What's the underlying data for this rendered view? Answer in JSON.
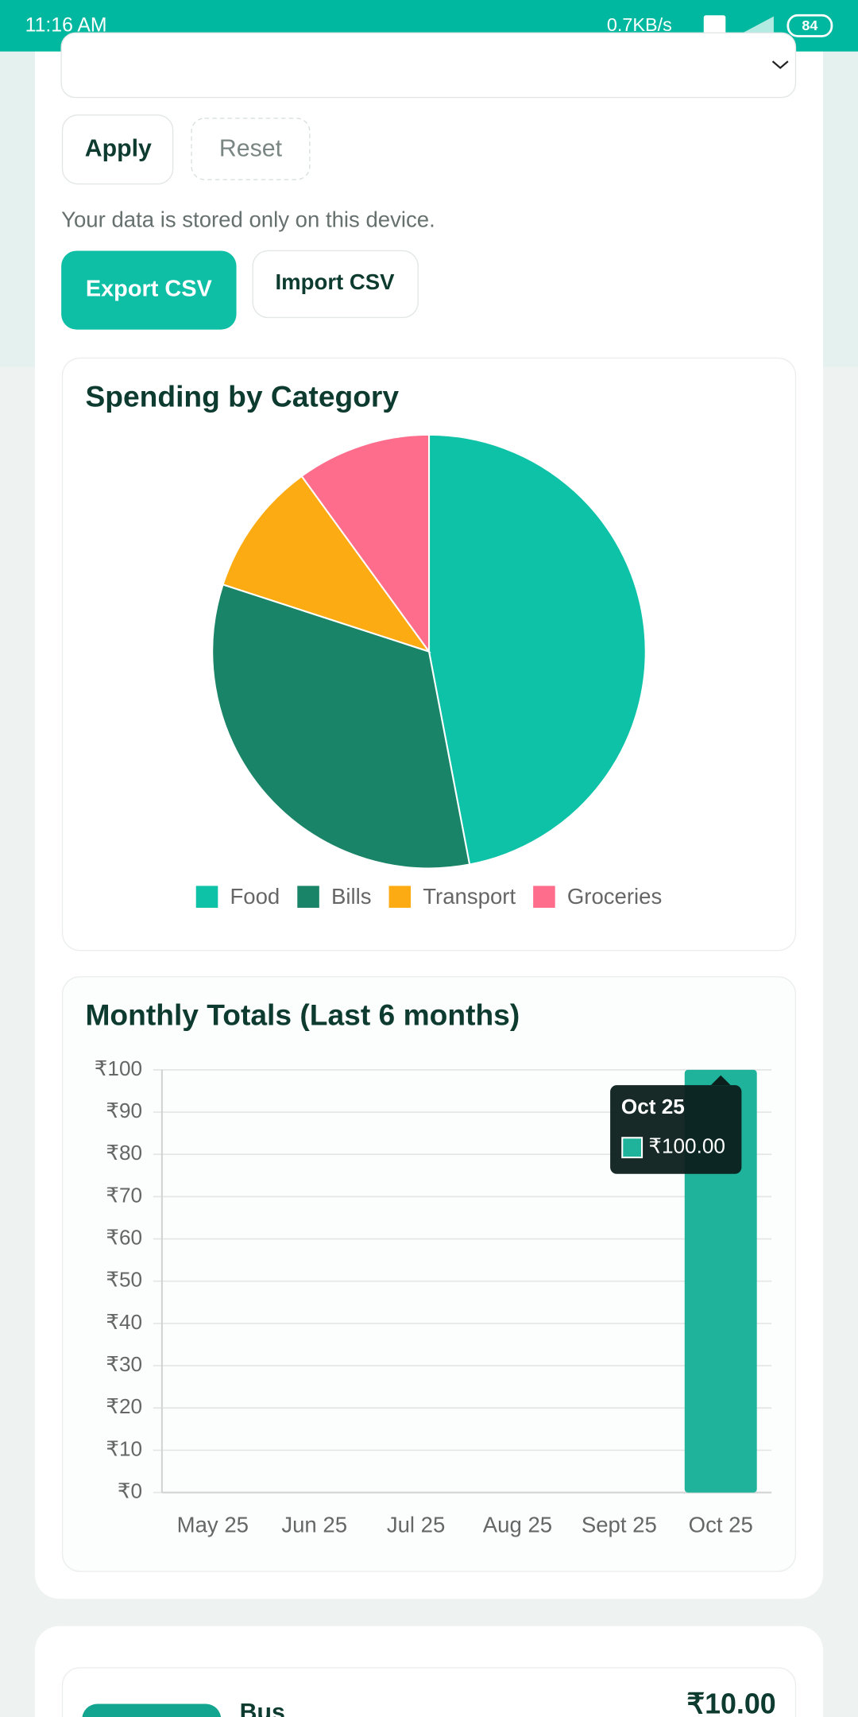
{
  "status_bar": {
    "time": "11:16 AM",
    "network_speed": "0.7KB/s",
    "battery": 84
  },
  "filters": {
    "apply": "Apply",
    "reset": "Reset"
  },
  "storage_note": "Your data is stored only on this device.",
  "export_button": "Export CSV",
  "import_button": "Import CSV",
  "chart_data": [
    {
      "type": "pie",
      "title": "Spending by Category",
      "categories": [
        "Food",
        "Bills",
        "Transport",
        "Groceries"
      ],
      "values": [
        47,
        33,
        10,
        10
      ],
      "colors": [
        "#0ec2a8",
        "#1a8468",
        "#fdab12",
        "#fe6d8b"
      ]
    },
    {
      "type": "bar",
      "title": "Monthly Totals (Last 6 months)",
      "categories": [
        "May 25",
        "Jun 25",
        "Jul 25",
        "Aug 25",
        "Sept 25",
        "Oct 25"
      ],
      "values": [
        0,
        0,
        0,
        0,
        0,
        100
      ],
      "value_labels": [
        null,
        null,
        null,
        null,
        null,
        "₹100.00"
      ],
      "color": "#1fb39b",
      "ylim": [
        0,
        100
      ],
      "yticks": [
        {
          "value": 0,
          "label": "₹0"
        },
        {
          "value": 10,
          "label": "₹10"
        },
        {
          "value": 20,
          "label": "₹20"
        },
        {
          "value": 30,
          "label": "₹30"
        },
        {
          "value": 40,
          "label": "₹40"
        },
        {
          "value": 50,
          "label": "₹50"
        },
        {
          "value": 60,
          "label": "₹60"
        },
        {
          "value": 70,
          "label": "₹70"
        },
        {
          "value": 80,
          "label": "₹80"
        },
        {
          "value": 90,
          "label": "₹90"
        },
        {
          "value": 100,
          "label": "₹100"
        }
      ],
      "grid": true
    }
  ],
  "transactions": [
    {
      "title": "Bus",
      "amount": "₹10.00"
    }
  ]
}
